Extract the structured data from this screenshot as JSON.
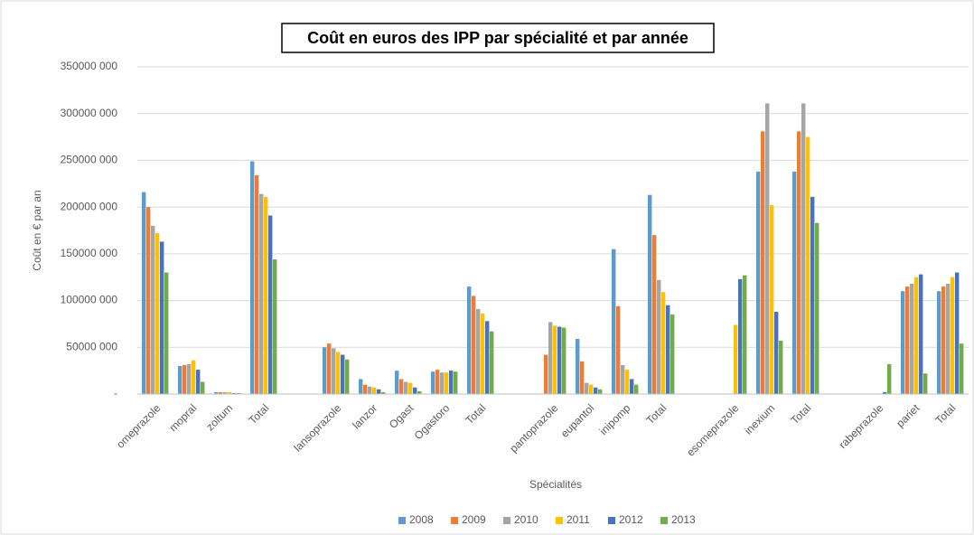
{
  "chart_data": {
    "type": "bar",
    "title": "Coût en euros des IPP par spécialité et par année",
    "y_label": "Coût en € par an",
    "x_label": "Spécialités",
    "categories": [
      "omeprazole",
      "mopral",
      "zoltum",
      "Total",
      null,
      "lansoprazole",
      "lanzor",
      "Ogast",
      "Ogastoro",
      "Total",
      null,
      "pantoprazole",
      "eupantol",
      "inipomp",
      "Total",
      null,
      "esomeprazole",
      "inexium",
      "Total",
      null,
      "rabeprazole",
      "pariet",
      "Total"
    ],
    "series": [
      {
        "name": "2008",
        "color": "#5b9bd5",
        "values": [
          216000000,
          30000000,
          2000000,
          249000000,
          null,
          50000000,
          16000000,
          25000000,
          24000000,
          115000000,
          null,
          null,
          59000000,
          155000000,
          213000000,
          null,
          null,
          238000000,
          238000000,
          null,
          null,
          110000000,
          110000000
        ]
      },
      {
        "name": "2009",
        "color": "#ed7d31",
        "values": [
          200000000,
          31000000,
          2000000,
          234000000,
          null,
          54000000,
          10000000,
          16000000,
          26000000,
          105000000,
          null,
          42000000,
          35000000,
          94000000,
          170000000,
          null,
          null,
          281000000,
          281000000,
          null,
          null,
          115000000,
          115000000
        ]
      },
      {
        "name": "2010",
        "color": "#a5a5a5",
        "values": [
          180000000,
          32000000,
          2000000,
          214000000,
          null,
          49000000,
          8000000,
          13000000,
          23000000,
          91000000,
          null,
          77000000,
          12000000,
          31000000,
          122000000,
          null,
          null,
          311000000,
          311000000,
          null,
          null,
          118000000,
          118000000
        ]
      },
      {
        "name": "2011",
        "color": "#ffc000",
        "values": [
          172000000,
          36000000,
          2000000,
          211000000,
          null,
          45000000,
          7000000,
          12000000,
          23000000,
          86000000,
          null,
          73000000,
          10000000,
          26000000,
          109000000,
          null,
          74000000,
          202000000,
          275000000,
          null,
          null,
          125000000,
          125000000
        ]
      },
      {
        "name": "2012",
        "color": "#4472c4",
        "values": [
          163000000,
          26000000,
          1000000,
          191000000,
          null,
          42000000,
          5000000,
          7000000,
          25000000,
          78000000,
          null,
          72000000,
          7000000,
          16000000,
          95000000,
          null,
          123000000,
          88000000,
          211000000,
          null,
          2000000,
          128000000,
          130000000
        ]
      },
      {
        "name": "2013",
        "color": "#70ad47",
        "values": [
          130000000,
          13000000,
          1000000,
          144000000,
          null,
          37000000,
          2000000,
          3000000,
          24000000,
          67000000,
          null,
          71000000,
          5000000,
          10000000,
          85000000,
          null,
          127000000,
          57000000,
          183000000,
          null,
          32000000,
          22000000,
          54000000
        ]
      }
    ],
    "ylim": [
      0,
      350000000
    ],
    "yticks": [
      {
        "value": 0,
        "label": "-"
      },
      {
        "value": 50000000,
        "label": "50000 000"
      },
      {
        "value": 100000000,
        "label": "100000 000"
      },
      {
        "value": 150000000,
        "label": "150000 000"
      },
      {
        "value": 200000000,
        "label": "200000 000"
      },
      {
        "value": 250000000,
        "label": "250000 000"
      },
      {
        "value": 300000000,
        "label": "300000 000"
      },
      {
        "value": 350000000,
        "label": "350000 000"
      }
    ],
    "grid": true,
    "legend": "bottom"
  }
}
